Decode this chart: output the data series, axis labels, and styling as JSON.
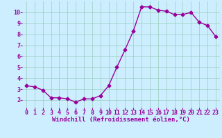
{
  "x": [
    0,
    1,
    2,
    3,
    4,
    5,
    6,
    7,
    8,
    9,
    10,
    11,
    12,
    13,
    14,
    15,
    16,
    17,
    18,
    19,
    20,
    21,
    22,
    23
  ],
  "y": [
    3.3,
    3.2,
    2.9,
    2.2,
    2.2,
    2.1,
    1.8,
    2.1,
    2.1,
    2.4,
    3.3,
    5.0,
    6.6,
    8.3,
    10.5,
    10.5,
    10.2,
    10.1,
    9.8,
    9.8,
    10.0,
    9.1,
    8.8,
    7.8
  ],
  "line_color": "#990099",
  "marker": "D",
  "markersize": 2.5,
  "linewidth": 1.0,
  "bg_color": "#cceeff",
  "grid_color": "#99ccbb",
  "xlabel": "Windchill (Refroidissement éolien,°C)",
  "xlabel_fontsize": 6.5,
  "tick_fontsize": 6.0,
  "xlim": [
    -0.5,
    23.5
  ],
  "ylim": [
    1.3,
    11.0
  ],
  "yticks": [
    2,
    3,
    4,
    5,
    6,
    7,
    8,
    9,
    10
  ],
  "xticks": [
    0,
    1,
    2,
    3,
    4,
    5,
    6,
    7,
    8,
    9,
    10,
    11,
    12,
    13,
    14,
    15,
    16,
    17,
    18,
    19,
    20,
    21,
    22,
    23
  ],
  "bottom_bar_color": "#9900aa",
  "bottom_bar_height": 0.055
}
